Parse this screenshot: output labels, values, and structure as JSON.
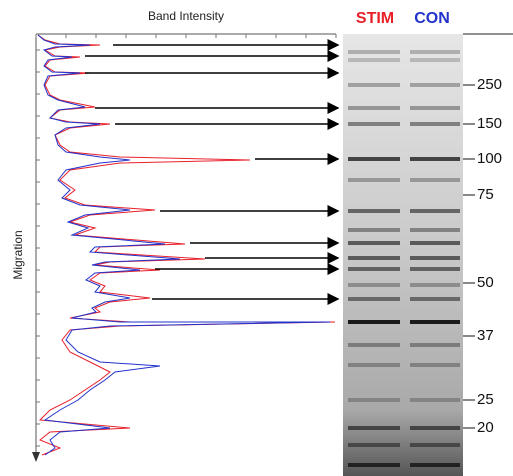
{
  "header": {
    "x_axis_label": "Band Intensity",
    "y_axis_label": "Migration"
  },
  "lanes": [
    "STIM",
    "CON"
  ],
  "markers": [
    250,
    150,
    100,
    75,
    50,
    37,
    25,
    20
  ]
}
